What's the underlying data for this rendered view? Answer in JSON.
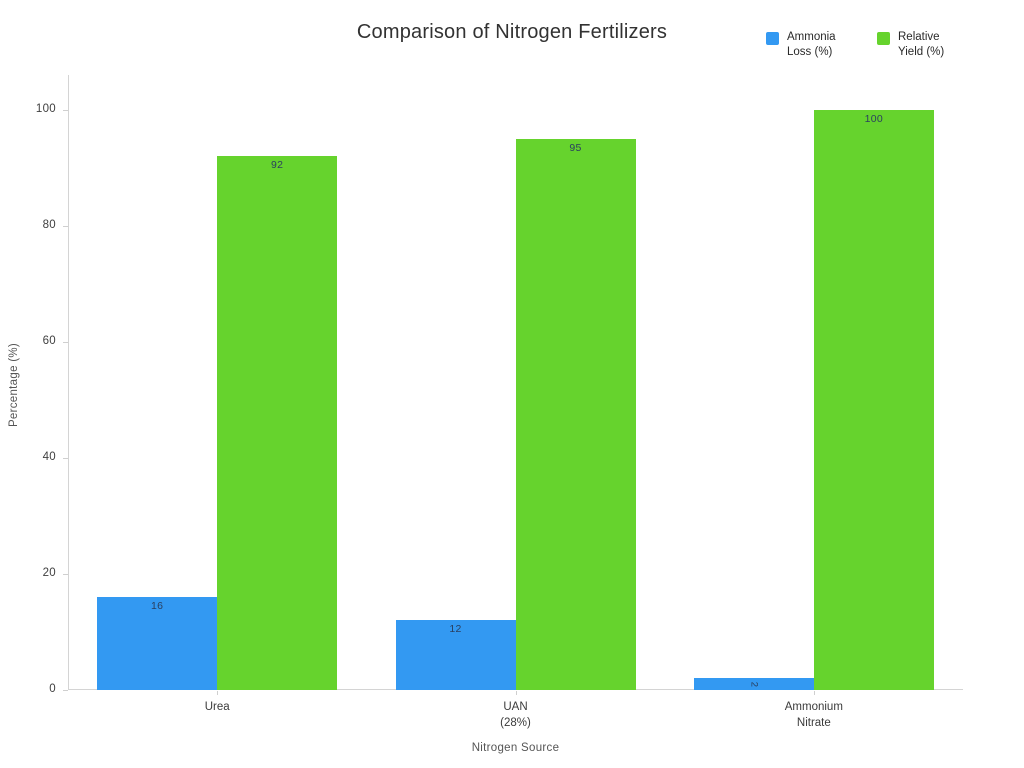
{
  "title": "Comparison of Nitrogen Fertilizers",
  "legend": {
    "items": [
      {
        "label": "Ammonia Loss (%)",
        "color": "#3399f2"
      },
      {
        "label": "Relative Yield (%)",
        "color": "#66d32d"
      }
    ]
  },
  "chart_data": {
    "type": "bar",
    "title": "Comparison of Nitrogen Fertilizers",
    "categories": [
      "Urea",
      "UAN\n(28%)",
      "Ammonium\nNitrate"
    ],
    "series": [
      {
        "name": "Ammonia Loss (%)",
        "color": "#3399f2",
        "values": [
          16,
          12,
          2
        ]
      },
      {
        "name": "Relative Yield (%)",
        "color": "#66d32d",
        "values": [
          92,
          95,
          100
        ]
      }
    ],
    "xlabel": "Nitrogen Source",
    "ylabel": "Percentage (%)",
    "yticks": [
      0,
      20,
      40,
      60,
      80,
      100
    ],
    "ylim": [
      0,
      106
    ],
    "grid": false,
    "legend_position": "top-right",
    "value_labels": "inside-top",
    "background": "#ffffff"
  }
}
